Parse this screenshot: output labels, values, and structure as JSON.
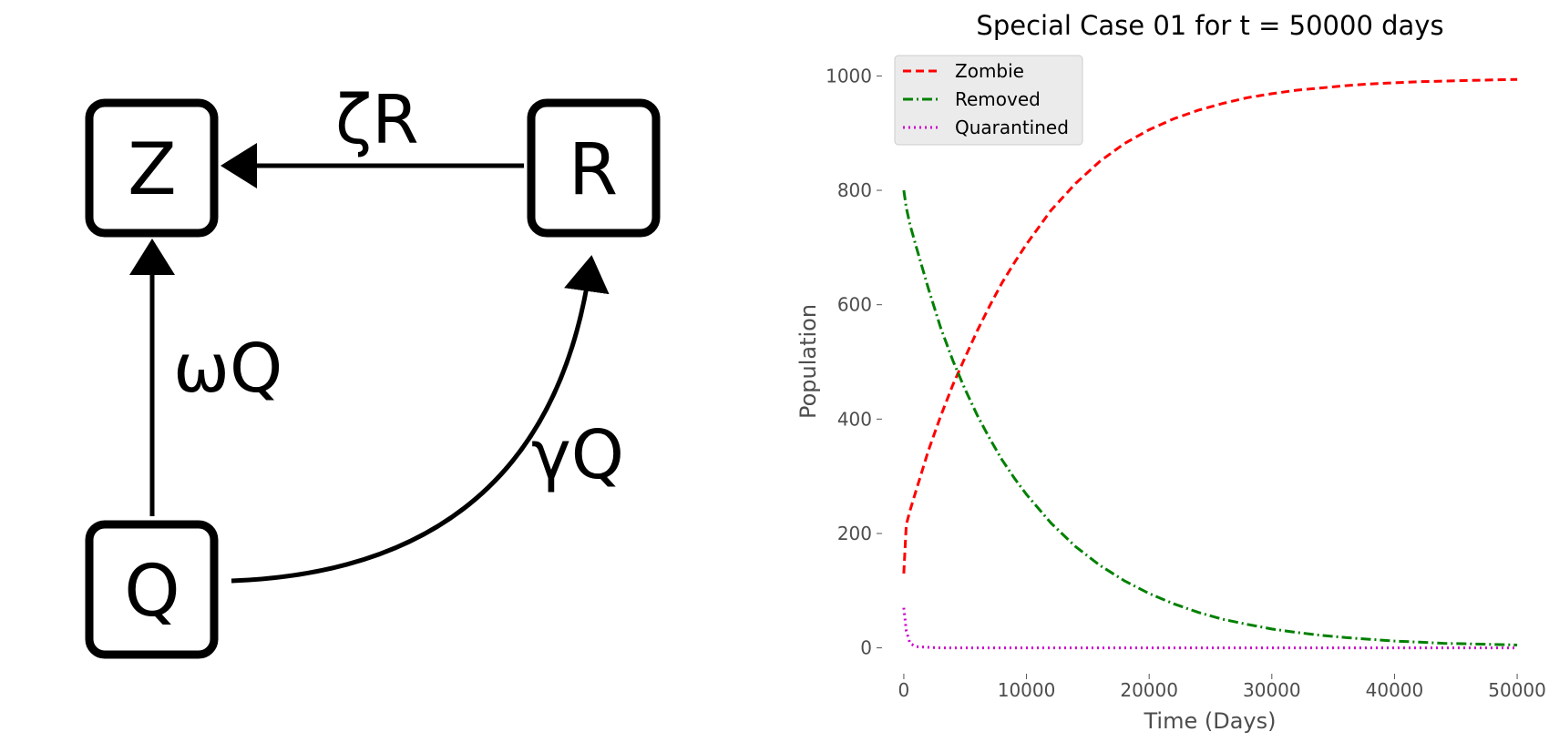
{
  "diagram": {
    "nodes": [
      {
        "id": "Z",
        "label": "Z"
      },
      {
        "id": "R",
        "label": "R"
      },
      {
        "id": "Q",
        "label": "Q"
      }
    ],
    "edges": [
      {
        "from": "R",
        "to": "Z",
        "label": "ζR"
      },
      {
        "from": "Q",
        "to": "Z",
        "label": "ωQ"
      },
      {
        "from": "Q",
        "to": "R",
        "label": "γQ"
      }
    ]
  },
  "chart_data": {
    "type": "line",
    "title": "Special Case 01 for t = 50000 days",
    "xlabel": "Time (Days)",
    "ylabel": "Population",
    "xlim": [
      -2000,
      52000
    ],
    "ylim": [
      -50,
      1050
    ],
    "xticks": [
      0,
      10000,
      20000,
      30000,
      40000,
      50000
    ],
    "yticks": [
      0,
      200,
      400,
      600,
      800,
      1000
    ],
    "grid": false,
    "legend": "top-left",
    "x": [
      0,
      200,
      500,
      1000,
      2000,
      3000,
      4000,
      5000,
      6000,
      7000,
      8000,
      9000,
      10000,
      12000,
      14000,
      16000,
      18000,
      20000,
      22000,
      24000,
      26000,
      28000,
      30000,
      32000,
      34000,
      36000,
      38000,
      40000,
      42000,
      44000,
      46000,
      48000,
      50000
    ],
    "series": [
      {
        "name": "Zombie",
        "color": "#ff0000",
        "style": "dashed",
        "values": [
          130,
          215,
          240,
          275,
          345,
          405,
          460,
          508,
          555,
          598,
          638,
          673,
          706,
          765,
          812,
          851,
          882,
          906,
          925,
          940,
          952,
          962,
          969,
          975,
          979,
          983,
          986,
          988,
          990,
          991,
          992,
          993,
          994
        ]
      },
      {
        "name": "Removed",
        "color": "#008000",
        "style": "dashdot",
        "values": [
          800,
          770,
          740,
          702,
          628,
          560,
          502,
          452,
          406,
          366,
          329,
          297,
          268,
          218,
          177,
          144,
          117,
          95,
          77,
          62,
          50,
          41,
          33,
          27,
          22,
          18,
          15,
          12,
          10,
          8,
          7,
          6,
          5
        ]
      },
      {
        "name": "Quarantined",
        "color": "#cc00cc",
        "style": "dotted",
        "values": [
          70,
          30,
          8,
          2,
          1,
          0,
          0,
          0,
          0,
          0,
          0,
          0,
          0,
          0,
          0,
          0,
          0,
          0,
          0,
          0,
          0,
          0,
          0,
          0,
          0,
          0,
          0,
          0,
          0,
          0,
          0,
          0,
          0
        ]
      }
    ]
  }
}
